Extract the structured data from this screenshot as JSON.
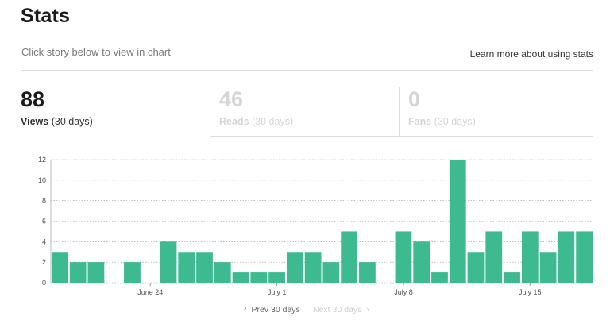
{
  "header": {
    "title": "Stats",
    "subtitle": "Click story below to view in chart",
    "learn_more": "Learn more about using stats"
  },
  "tabs": [
    {
      "value": "88",
      "label": "Views",
      "period": "(30 days)",
      "active": true
    },
    {
      "value": "46",
      "label": "Reads",
      "period": "(30 days)",
      "active": false
    },
    {
      "value": "0",
      "label": "Fans",
      "period": "(30 days)",
      "active": false
    }
  ],
  "chart_data": {
    "type": "bar",
    "color": "#3dba8f",
    "ylim": [
      0,
      12
    ],
    "yticks": [
      0,
      2,
      4,
      6,
      8,
      10,
      12
    ],
    "grid": true,
    "xtick_labels": [
      {
        "index": 5,
        "label": "June 24"
      },
      {
        "index": 12,
        "label": "July 1"
      },
      {
        "index": 19,
        "label": "July 8"
      },
      {
        "index": 26,
        "label": "July 15"
      }
    ],
    "values": [
      3,
      2,
      2,
      0,
      2,
      0,
      4,
      3,
      3,
      2,
      1,
      1,
      1,
      3,
      3,
      2,
      5,
      2,
      0,
      5,
      4,
      1,
      12,
      3,
      5,
      1,
      5,
      3,
      5,
      5
    ]
  },
  "pager": {
    "prev_arrow": "‹",
    "prev": "Prev 30 days",
    "next": "Next 30 days",
    "next_arrow": "›"
  }
}
